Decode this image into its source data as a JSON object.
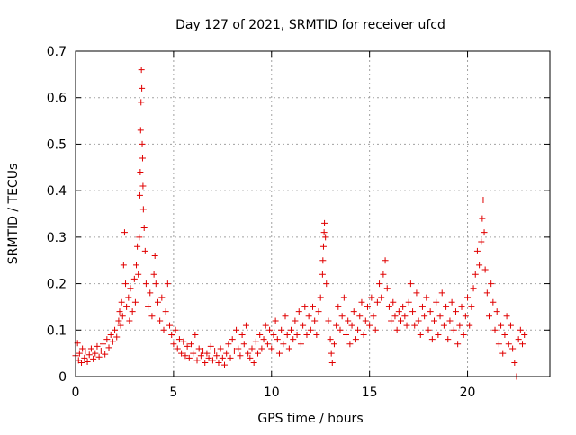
{
  "chart_data": {
    "type": "scatter",
    "title": "Day 127 of 2021, SRMTID for receiver ufcd",
    "xlabel": "GPS time / hours",
    "ylabel": "SRMTID / TECUs",
    "xlim": [
      0,
      24.2
    ],
    "ylim": [
      0,
      0.7
    ],
    "xticks": [
      0,
      5,
      10,
      15,
      20
    ],
    "xtick_labels": [
      "0",
      "5",
      "10",
      "15",
      "20"
    ],
    "yticks": [
      0,
      0.1,
      0.2,
      0.3,
      0.4,
      0.5,
      0.6,
      0.7
    ],
    "ytick_labels": [
      "0",
      "0.1",
      "0.2",
      "0.3",
      "0.4",
      "0.5",
      "0.6",
      "0.7"
    ],
    "grid": true,
    "marker": "plus",
    "marker_color": "#e00000",
    "series": [
      {
        "name": "SRMTID",
        "points": [
          [
            0.0,
            0.045
          ],
          [
            0.1,
            0.072
          ],
          [
            0.15,
            0.035
          ],
          [
            0.2,
            0.05
          ],
          [
            0.3,
            0.03
          ],
          [
            0.35,
            0.06
          ],
          [
            0.45,
            0.04
          ],
          [
            0.5,
            0.055
          ],
          [
            0.6,
            0.032
          ],
          [
            0.7,
            0.047
          ],
          [
            0.8,
            0.06
          ],
          [
            0.9,
            0.038
          ],
          [
            1.0,
            0.05
          ],
          [
            1.1,
            0.065
          ],
          [
            1.2,
            0.042
          ],
          [
            1.3,
            0.055
          ],
          [
            1.4,
            0.07
          ],
          [
            1.5,
            0.048
          ],
          [
            1.6,
            0.08
          ],
          [
            1.7,
            0.062
          ],
          [
            1.8,
            0.09
          ],
          [
            1.9,
            0.075
          ],
          [
            2.0,
            0.1
          ],
          [
            2.1,
            0.085
          ],
          [
            2.2,
            0.12
          ],
          [
            2.25,
            0.14
          ],
          [
            2.3,
            0.11
          ],
          [
            2.35,
            0.16
          ],
          [
            2.4,
            0.13
          ],
          [
            2.45,
            0.24
          ],
          [
            2.5,
            0.31
          ],
          [
            2.55,
            0.2
          ],
          [
            2.6,
            0.15
          ],
          [
            2.7,
            0.17
          ],
          [
            2.75,
            0.12
          ],
          [
            2.8,
            0.19
          ],
          [
            2.9,
            0.14
          ],
          [
            3.0,
            0.21
          ],
          [
            3.05,
            0.16
          ],
          [
            3.1,
            0.24
          ],
          [
            3.15,
            0.28
          ],
          [
            3.2,
            0.22
          ],
          [
            3.25,
            0.3
          ],
          [
            3.28,
            0.39
          ],
          [
            3.3,
            0.44
          ],
          [
            3.32,
            0.53
          ],
          [
            3.34,
            0.59
          ],
          [
            3.36,
            0.66
          ],
          [
            3.38,
            0.62
          ],
          [
            3.4,
            0.5
          ],
          [
            3.42,
            0.47
          ],
          [
            3.44,
            0.41
          ],
          [
            3.46,
            0.36
          ],
          [
            3.5,
            0.32
          ],
          [
            3.55,
            0.27
          ],
          [
            3.6,
            0.2
          ],
          [
            3.7,
            0.15
          ],
          [
            3.8,
            0.18
          ],
          [
            3.9,
            0.13
          ],
          [
            4.0,
            0.22
          ],
          [
            4.05,
            0.26
          ],
          [
            4.1,
            0.2
          ],
          [
            4.2,
            0.16
          ],
          [
            4.3,
            0.12
          ],
          [
            4.4,
            0.17
          ],
          [
            4.5,
            0.1
          ],
          [
            4.6,
            0.14
          ],
          [
            4.7,
            0.2
          ],
          [
            4.8,
            0.11
          ],
          [
            4.9,
            0.09
          ],
          [
            5.0,
            0.07
          ],
          [
            5.1,
            0.1
          ],
          [
            5.2,
            0.06
          ],
          [
            5.3,
            0.08
          ],
          [
            5.4,
            0.05
          ],
          [
            5.5,
            0.075
          ],
          [
            5.6,
            0.045
          ],
          [
            5.7,
            0.065
          ],
          [
            5.8,
            0.04
          ],
          [
            5.9,
            0.07
          ],
          [
            6.0,
            0.05
          ],
          [
            6.1,
            0.09
          ],
          [
            6.2,
            0.035
          ],
          [
            6.3,
            0.06
          ],
          [
            6.4,
            0.045
          ],
          [
            6.5,
            0.055
          ],
          [
            6.6,
            0.03
          ],
          [
            6.7,
            0.05
          ],
          [
            6.8,
            0.04
          ],
          [
            6.9,
            0.065
          ],
          [
            7.0,
            0.035
          ],
          [
            7.1,
            0.055
          ],
          [
            7.2,
            0.045
          ],
          [
            7.3,
            0.03
          ],
          [
            7.4,
            0.06
          ],
          [
            7.5,
            0.04
          ],
          [
            7.6,
            0.025
          ],
          [
            7.7,
            0.05
          ],
          [
            7.8,
            0.07
          ],
          [
            7.9,
            0.04
          ],
          [
            8.0,
            0.08
          ],
          [
            8.1,
            0.055
          ],
          [
            8.2,
            0.1
          ],
          [
            8.3,
            0.06
          ],
          [
            8.4,
            0.045
          ],
          [
            8.5,
            0.09
          ],
          [
            8.6,
            0.07
          ],
          [
            8.7,
            0.11
          ],
          [
            8.8,
            0.05
          ],
          [
            8.9,
            0.04
          ],
          [
            9.0,
            0.06
          ],
          [
            9.1,
            0.03
          ],
          [
            9.2,
            0.075
          ],
          [
            9.3,
            0.05
          ],
          [
            9.4,
            0.09
          ],
          [
            9.5,
            0.06
          ],
          [
            9.6,
            0.08
          ],
          [
            9.7,
            0.11
          ],
          [
            9.8,
            0.07
          ],
          [
            9.9,
            0.1
          ],
          [
            10.0,
            0.06
          ],
          [
            10.1,
            0.09
          ],
          [
            10.2,
            0.12
          ],
          [
            10.3,
            0.08
          ],
          [
            10.4,
            0.05
          ],
          [
            10.5,
            0.1
          ],
          [
            10.6,
            0.07
          ],
          [
            10.7,
            0.13
          ],
          [
            10.8,
            0.09
          ],
          [
            10.9,
            0.06
          ],
          [
            11.0,
            0.1
          ],
          [
            11.1,
            0.08
          ],
          [
            11.2,
            0.12
          ],
          [
            11.3,
            0.09
          ],
          [
            11.4,
            0.14
          ],
          [
            11.5,
            0.07
          ],
          [
            11.6,
            0.11
          ],
          [
            11.7,
            0.15
          ],
          [
            11.8,
            0.09
          ],
          [
            11.9,
            0.13
          ],
          [
            12.0,
            0.1
          ],
          [
            12.1,
            0.15
          ],
          [
            12.2,
            0.12
          ],
          [
            12.3,
            0.09
          ],
          [
            12.4,
            0.14
          ],
          [
            12.5,
            0.17
          ],
          [
            12.6,
            0.22
          ],
          [
            12.62,
            0.25
          ],
          [
            12.65,
            0.28
          ],
          [
            12.68,
            0.31
          ],
          [
            12.7,
            0.33
          ],
          [
            12.75,
            0.3
          ],
          [
            12.8,
            0.2
          ],
          [
            12.9,
            0.12
          ],
          [
            13.0,
            0.08
          ],
          [
            13.05,
            0.05
          ],
          [
            13.1,
            0.03
          ],
          [
            13.2,
            0.07
          ],
          [
            13.3,
            0.11
          ],
          [
            13.4,
            0.15
          ],
          [
            13.5,
            0.1
          ],
          [
            13.6,
            0.13
          ],
          [
            13.7,
            0.17
          ],
          [
            13.8,
            0.09
          ],
          [
            13.9,
            0.12
          ],
          [
            14.0,
            0.07
          ],
          [
            14.1,
            0.11
          ],
          [
            14.2,
            0.14
          ],
          [
            14.3,
            0.08
          ],
          [
            14.4,
            0.1
          ],
          [
            14.5,
            0.13
          ],
          [
            14.6,
            0.16
          ],
          [
            14.7,
            0.09
          ],
          [
            14.8,
            0.12
          ],
          [
            14.9,
            0.15
          ],
          [
            15.0,
            0.11
          ],
          [
            15.1,
            0.17
          ],
          [
            15.2,
            0.13
          ],
          [
            15.3,
            0.1
          ],
          [
            15.4,
            0.16
          ],
          [
            15.5,
            0.2
          ],
          [
            15.6,
            0.17
          ],
          [
            15.7,
            0.22
          ],
          [
            15.8,
            0.25
          ],
          [
            15.9,
            0.19
          ],
          [
            16.0,
            0.15
          ],
          [
            16.1,
            0.12
          ],
          [
            16.2,
            0.16
          ],
          [
            16.3,
            0.13
          ],
          [
            16.4,
            0.1
          ],
          [
            16.5,
            0.14
          ],
          [
            16.6,
            0.12
          ],
          [
            16.7,
            0.15
          ],
          [
            16.8,
            0.13
          ],
          [
            16.9,
            0.11
          ],
          [
            17.0,
            0.16
          ],
          [
            17.1,
            0.2
          ],
          [
            17.2,
            0.14
          ],
          [
            17.3,
            0.11
          ],
          [
            17.4,
            0.18
          ],
          [
            17.5,
            0.12
          ],
          [
            17.6,
            0.09
          ],
          [
            17.7,
            0.15
          ],
          [
            17.8,
            0.13
          ],
          [
            17.9,
            0.17
          ],
          [
            18.0,
            0.1
          ],
          [
            18.1,
            0.14
          ],
          [
            18.2,
            0.08
          ],
          [
            18.3,
            0.12
          ],
          [
            18.4,
            0.16
          ],
          [
            18.5,
            0.09
          ],
          [
            18.6,
            0.13
          ],
          [
            18.7,
            0.18
          ],
          [
            18.8,
            0.11
          ],
          [
            18.9,
            0.15
          ],
          [
            19.0,
            0.08
          ],
          [
            19.1,
            0.12
          ],
          [
            19.2,
            0.16
          ],
          [
            19.3,
            0.1
          ],
          [
            19.4,
            0.14
          ],
          [
            19.5,
            0.07
          ],
          [
            19.6,
            0.11
          ],
          [
            19.7,
            0.15
          ],
          [
            19.8,
            0.09
          ],
          [
            19.9,
            0.13
          ],
          [
            20.0,
            0.17
          ],
          [
            20.1,
            0.11
          ],
          [
            20.2,
            0.15
          ],
          [
            20.3,
            0.19
          ],
          [
            20.4,
            0.22
          ],
          [
            20.5,
            0.27
          ],
          [
            20.6,
            0.24
          ],
          [
            20.7,
            0.29
          ],
          [
            20.75,
            0.34
          ],
          [
            20.8,
            0.38
          ],
          [
            20.85,
            0.31
          ],
          [
            20.9,
            0.23
          ],
          [
            21.0,
            0.18
          ],
          [
            21.1,
            0.13
          ],
          [
            21.2,
            0.2
          ],
          [
            21.3,
            0.16
          ],
          [
            21.4,
            0.1
          ],
          [
            21.5,
            0.14
          ],
          [
            21.6,
            0.07
          ],
          [
            21.7,
            0.11
          ],
          [
            21.8,
            0.05
          ],
          [
            21.9,
            0.09
          ],
          [
            22.0,
            0.13
          ],
          [
            22.1,
            0.07
          ],
          [
            22.2,
            0.11
          ],
          [
            22.3,
            0.06
          ],
          [
            22.4,
            0.03
          ],
          [
            22.5,
            0.0
          ],
          [
            22.6,
            0.08
          ],
          [
            22.7,
            0.1
          ],
          [
            22.8,
            0.07
          ],
          [
            22.9,
            0.09
          ]
        ]
      }
    ]
  }
}
